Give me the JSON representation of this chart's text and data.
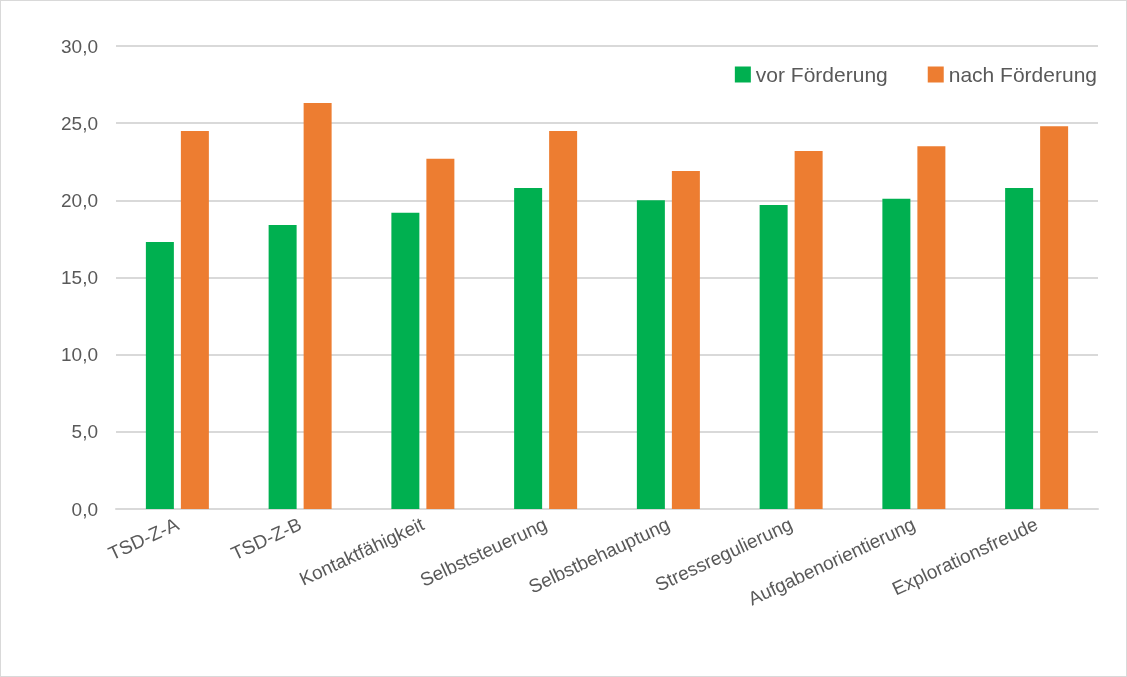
{
  "chart_data": {
    "type": "bar",
    "categories": [
      "TSD-Z-A",
      "TSD-Z-B",
      "Kontaktfähigkeit",
      "Selbststeuerung",
      "Selbstbehauptung",
      "Stressregulierung",
      "Aufgabenorientierung",
      "Explorationsfreude"
    ],
    "series": [
      {
        "name": "vor Förderung",
        "color": "#00b050",
        "values": [
          17.3,
          18.4,
          19.2,
          20.8,
          20.0,
          19.7,
          20.1,
          20.8
        ]
      },
      {
        "name": "nach Förderung",
        "color": "#ed7d31",
        "values": [
          24.5,
          26.3,
          22.7,
          24.5,
          21.9,
          23.2,
          23.5,
          24.8
        ]
      }
    ],
    "ylim": [
      0,
      30
    ],
    "yticks": [
      {
        "value": 0,
        "label": "0,0"
      },
      {
        "value": 5,
        "label": "5,0"
      },
      {
        "value": 10,
        "label": "10,0"
      },
      {
        "value": 15,
        "label": "15,0"
      },
      {
        "value": 20,
        "label": "20,0"
      },
      {
        "value": 25,
        "label": "25,0"
      },
      {
        "value": 30,
        "label": "30,0"
      }
    ],
    "grid": "y",
    "legend": "top right"
  }
}
